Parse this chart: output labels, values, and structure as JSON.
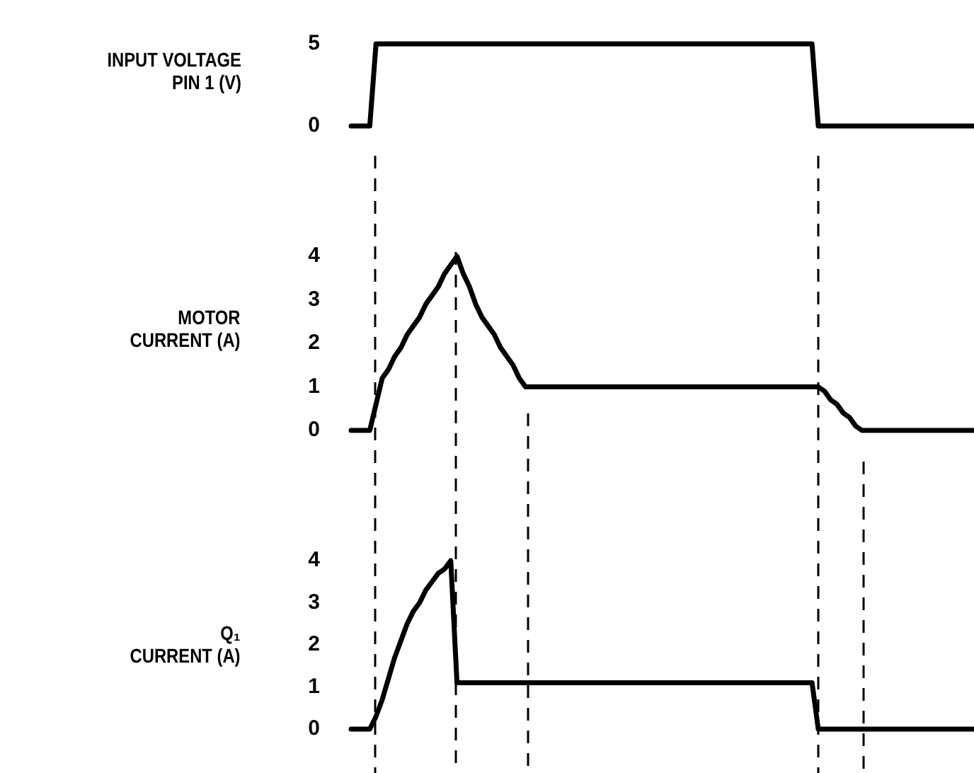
{
  "chart_data": [
    {
      "type": "line",
      "ylabel": "INPUT VOLTAGE\nPIN 1 (V)",
      "categories": [
        null,
        null,
        null,
        null,
        null,
        null,
        null,
        null,
        null,
        null,
        null,
        null,
        null,
        null,
        null,
        null,
        null,
        null,
        null,
        null,
        null,
        null,
        null,
        null,
        null,
        null,
        null,
        null,
        null,
        null,
        null,
        null,
        null,
        null,
        null,
        null,
        null,
        null,
        null,
        null,
        null,
        null,
        null,
        null,
        null,
        null,
        null,
        null,
        null,
        null,
        null,
        null,
        null,
        null,
        null,
        null,
        null,
        null,
        null,
        null,
        null,
        null,
        null,
        null,
        null,
        null,
        null,
        null,
        null,
        null,
        null,
        null,
        null,
        null,
        null,
        null,
        null,
        null,
        null,
        null,
        null,
        null,
        null,
        null,
        null,
        null,
        null,
        null,
        null,
        null,
        null,
        null,
        null,
        null,
        null,
        null,
        null,
        null,
        null,
        null,
        null
      ],
      "values": [
        0,
        0,
        0,
        0,
        5,
        5,
        5,
        5,
        5,
        5,
        5,
        5,
        5,
        5,
        5,
        5,
        5,
        5,
        5,
        5,
        5,
        5,
        5,
        5,
        5,
        5,
        5,
        5,
        5,
        5,
        5,
        5,
        5,
        5,
        5,
        5,
        5,
        5,
        5,
        5,
        5,
        5,
        5,
        5,
        5,
        5,
        5,
        5,
        5,
        5,
        5,
        5,
        5,
        5,
        5,
        5,
        5,
        5,
        5,
        5,
        5,
        5,
        5,
        5,
        5,
        5,
        5,
        5,
        5,
        5,
        5,
        5,
        5,
        5,
        5,
        0,
        0,
        0,
        0,
        0,
        0,
        0,
        0,
        0,
        0,
        0,
        0,
        0,
        0,
        0,
        0,
        0,
        0,
        0,
        0,
        0,
        0,
        0,
        0,
        0,
        0
      ],
      "color": "#000000",
      "ylim": [
        0,
        5
      ],
      "yticks": [
        0,
        5
      ],
      "tick_labels": "y"
    },
    {
      "type": "line",
      "ylabel": "MOTOR\nCURRENT (A)",
      "categories": [
        null,
        null,
        null,
        null,
        null,
        null,
        null,
        null,
        null,
        null,
        null,
        null,
        null,
        null,
        null,
        null,
        null,
        null,
        null,
        null,
        null,
        null,
        null,
        null,
        null,
        null,
        null,
        null,
        null,
        null,
        null,
        null,
        null,
        null,
        null,
        null,
        null,
        null,
        null,
        null,
        null,
        null,
        null,
        null,
        null,
        null,
        null,
        null,
        null,
        null,
        null,
        null,
        null,
        null,
        null,
        null,
        null,
        null,
        null,
        null,
        null,
        null,
        null,
        null,
        null,
        null,
        null,
        null,
        null,
        null,
        null,
        null,
        null,
        null,
        null,
        null,
        null,
        null,
        null,
        null,
        null,
        null,
        null,
        null,
        null,
        null,
        null,
        null,
        null,
        null,
        null,
        null,
        null,
        null,
        null,
        null,
        null,
        null,
        null,
        null,
        null
      ],
      "values": [
        0,
        0,
        0,
        0,
        0.6,
        1.2,
        1.4,
        1.7,
        1.9,
        2.2,
        2.4,
        2.6,
        2.9,
        3.1,
        3.3,
        3.6,
        3.8,
        4,
        3.6,
        3.3,
        2.9,
        2.6,
        2.4,
        2.2,
        1.9,
        1.7,
        1.5,
        1.2,
        1,
        1,
        1,
        1,
        1,
        1,
        1,
        1,
        1,
        1,
        1,
        1,
        1,
        1,
        1,
        1,
        1,
        1,
        1,
        1,
        1,
        1,
        1,
        1,
        1,
        1,
        1,
        1,
        1,
        1,
        1,
        1,
        1,
        1,
        1,
        1,
        1,
        1,
        1,
        1,
        1,
        1,
        1,
        1,
        1,
        1,
        1,
        1,
        0.9,
        0.7,
        0.6,
        0.4,
        0.3,
        0.1,
        0,
        0,
        0,
        0,
        0,
        0,
        0,
        0,
        0,
        0,
        0,
        0,
        0,
        0,
        0,
        0,
        0,
        0,
        0
      ],
      "color": "#000000",
      "ylim": [
        0,
        4
      ],
      "yticks": [
        0,
        1,
        2,
        3,
        4
      ],
      "tick_labels": "y"
    },
    {
      "type": "line",
      "ylabel": "Q₁\nCURRENT (A)",
      "categories": [
        null,
        null,
        null,
        null,
        null,
        null,
        null,
        null,
        null,
        null,
        null,
        null,
        null,
        null,
        null,
        null,
        null,
        null,
        null,
        null,
        null,
        null,
        null,
        null,
        null,
        null,
        null,
        null,
        null,
        null,
        null,
        null,
        null,
        null,
        null,
        null,
        null,
        null,
        null,
        null,
        null,
        null,
        null,
        null,
        null,
        null,
        null,
        null,
        null,
        null,
        null,
        null,
        null,
        null,
        null,
        null,
        null,
        null,
        null,
        null,
        null,
        null,
        null,
        null,
        null,
        null,
        null,
        null,
        null,
        null,
        null,
        null,
        null,
        null,
        null,
        null,
        null,
        null,
        null,
        null,
        null,
        null,
        null,
        null,
        null,
        null,
        null,
        null,
        null,
        null,
        null,
        null,
        null,
        null,
        null,
        null,
        null,
        null,
        null,
        null,
        null
      ],
      "values": [
        0,
        0,
        0,
        0,
        0.3,
        0.7,
        1.2,
        1.7,
        2.1,
        2.5,
        2.8,
        3,
        3.3,
        3.5,
        3.7,
        3.8,
        4,
        1.1,
        1.1,
        1.1,
        1.1,
        1.1,
        1.1,
        1.1,
        1.1,
        1.1,
        1.1,
        1.1,
        1.1,
        1.1,
        1.1,
        1.1,
        1.1,
        1.1,
        1.1,
        1.1,
        1.1,
        1.1,
        1.1,
        1.1,
        1.1,
        1.1,
        1.1,
        1.1,
        1.1,
        1.1,
        1.1,
        1.1,
        1.1,
        1.1,
        1.1,
        1.1,
        1.1,
        1.1,
        1.1,
        1.1,
        1.1,
        1.1,
        1.1,
        1.1,
        1.1,
        1.1,
        1.1,
        1.1,
        1.1,
        1.1,
        1.1,
        1.1,
        1.1,
        1.1,
        1.1,
        1.1,
        1.1,
        1.1,
        1.1,
        0,
        0,
        0,
        0,
        0,
        0,
        0,
        0,
        0,
        0,
        0,
        0,
        0,
        0,
        0,
        0,
        0,
        0,
        0,
        0,
        0,
        0,
        0,
        0,
        0,
        0
      ],
      "color": "#000000",
      "ylim": [
        0,
        4
      ],
      "yticks": [
        0,
        1,
        2,
        3,
        4
      ],
      "tick_labels": "y"
    }
  ]
}
